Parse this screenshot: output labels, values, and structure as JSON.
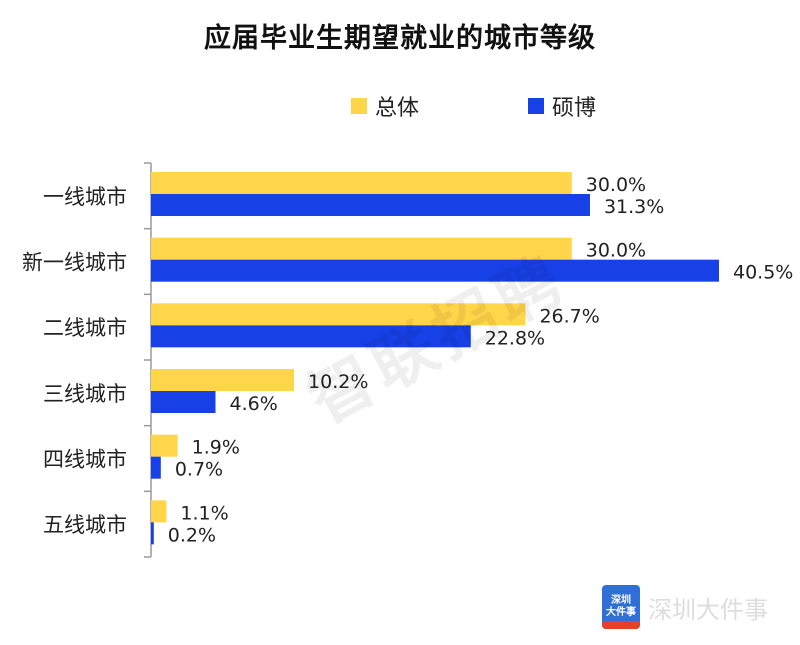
{
  "chart_data": {
    "type": "bar",
    "orientation": "horizontal",
    "title": "应届毕业生期望就业的城市等级",
    "categories": [
      "一线城市",
      "新一线城市",
      "二线城市",
      "三线城市",
      "四线城市",
      "五线城市"
    ],
    "series": [
      {
        "name": "总体",
        "color": "#FFD54A",
        "values": [
          30.0,
          30.0,
          26.7,
          10.2,
          1.9,
          1.1
        ],
        "labels": [
          "30.0%",
          "30.0%",
          "26.7%",
          "10.2%",
          "1.9%",
          "1.1%"
        ]
      },
      {
        "name": "硕博",
        "color": "#1741E6",
        "values": [
          31.3,
          40.5,
          22.8,
          4.6,
          0.7,
          0.2
        ],
        "labels": [
          "31.3%",
          "40.5%",
          "22.8%",
          "4.6%",
          "0.7%",
          "0.2%"
        ]
      }
    ],
    "xlim": [
      0,
      40.5
    ],
    "grid": false,
    "legend_position": "top"
  },
  "watermark": "智联招聘",
  "brand": {
    "logo_text_1": "深圳",
    "logo_text_2": "大件事",
    "name": "深圳大件事"
  }
}
